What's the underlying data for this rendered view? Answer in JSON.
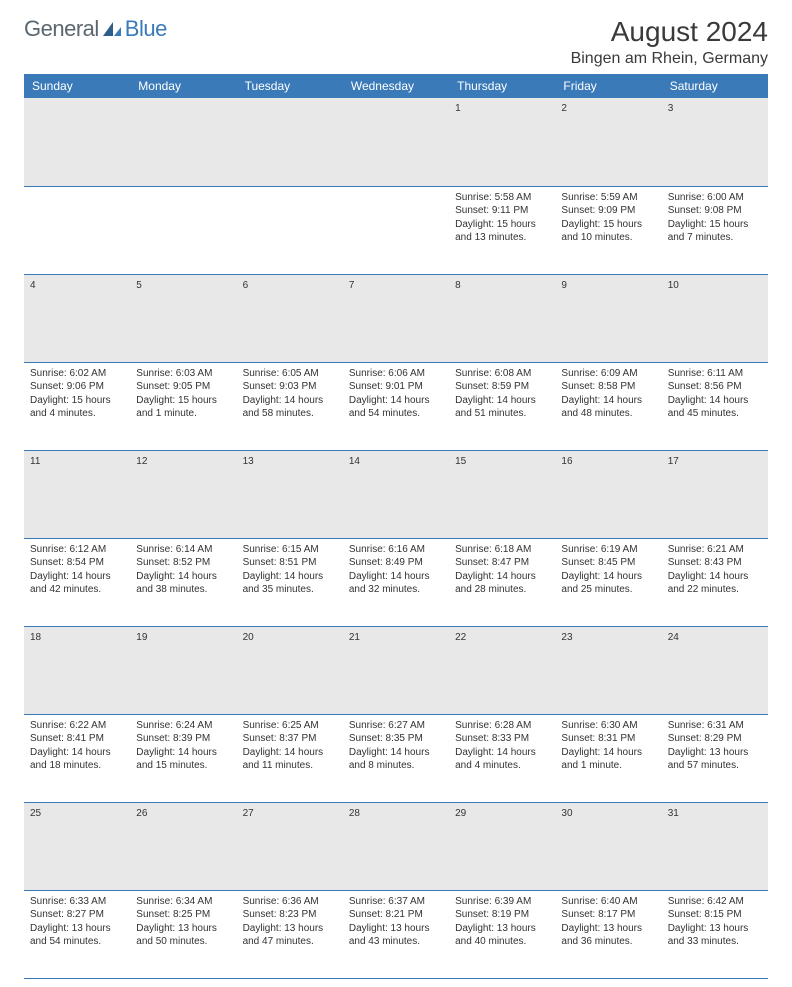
{
  "logo": {
    "text1": "General",
    "text2": "Blue"
  },
  "title": "August 2024",
  "location": "Bingen am Rhein, Germany",
  "colors": {
    "header_bg": "#3a7ab8",
    "daynum_bg": "#e8e8e8",
    "border": "#3a7ab8",
    "text": "#333333"
  },
  "weekdays": [
    "Sunday",
    "Monday",
    "Tuesday",
    "Wednesday",
    "Thursday",
    "Friday",
    "Saturday"
  ],
  "weeks": [
    {
      "nums": [
        "",
        "",
        "",
        "",
        "1",
        "2",
        "3"
      ],
      "cells": [
        null,
        null,
        null,
        null,
        {
          "sunrise": "Sunrise: 5:58 AM",
          "sunset": "Sunset: 9:11 PM",
          "daylight": "Daylight: 15 hours and 13 minutes."
        },
        {
          "sunrise": "Sunrise: 5:59 AM",
          "sunset": "Sunset: 9:09 PM",
          "daylight": "Daylight: 15 hours and 10 minutes."
        },
        {
          "sunrise": "Sunrise: 6:00 AM",
          "sunset": "Sunset: 9:08 PM",
          "daylight": "Daylight: 15 hours and 7 minutes."
        }
      ]
    },
    {
      "nums": [
        "4",
        "5",
        "6",
        "7",
        "8",
        "9",
        "10"
      ],
      "cells": [
        {
          "sunrise": "Sunrise: 6:02 AM",
          "sunset": "Sunset: 9:06 PM",
          "daylight": "Daylight: 15 hours and 4 minutes."
        },
        {
          "sunrise": "Sunrise: 6:03 AM",
          "sunset": "Sunset: 9:05 PM",
          "daylight": "Daylight: 15 hours and 1 minute."
        },
        {
          "sunrise": "Sunrise: 6:05 AM",
          "sunset": "Sunset: 9:03 PM",
          "daylight": "Daylight: 14 hours and 58 minutes."
        },
        {
          "sunrise": "Sunrise: 6:06 AM",
          "sunset": "Sunset: 9:01 PM",
          "daylight": "Daylight: 14 hours and 54 minutes."
        },
        {
          "sunrise": "Sunrise: 6:08 AM",
          "sunset": "Sunset: 8:59 PM",
          "daylight": "Daylight: 14 hours and 51 minutes."
        },
        {
          "sunrise": "Sunrise: 6:09 AM",
          "sunset": "Sunset: 8:58 PM",
          "daylight": "Daylight: 14 hours and 48 minutes."
        },
        {
          "sunrise": "Sunrise: 6:11 AM",
          "sunset": "Sunset: 8:56 PM",
          "daylight": "Daylight: 14 hours and 45 minutes."
        }
      ]
    },
    {
      "nums": [
        "11",
        "12",
        "13",
        "14",
        "15",
        "16",
        "17"
      ],
      "cells": [
        {
          "sunrise": "Sunrise: 6:12 AM",
          "sunset": "Sunset: 8:54 PM",
          "daylight": "Daylight: 14 hours and 42 minutes."
        },
        {
          "sunrise": "Sunrise: 6:14 AM",
          "sunset": "Sunset: 8:52 PM",
          "daylight": "Daylight: 14 hours and 38 minutes."
        },
        {
          "sunrise": "Sunrise: 6:15 AM",
          "sunset": "Sunset: 8:51 PM",
          "daylight": "Daylight: 14 hours and 35 minutes."
        },
        {
          "sunrise": "Sunrise: 6:16 AM",
          "sunset": "Sunset: 8:49 PM",
          "daylight": "Daylight: 14 hours and 32 minutes."
        },
        {
          "sunrise": "Sunrise: 6:18 AM",
          "sunset": "Sunset: 8:47 PM",
          "daylight": "Daylight: 14 hours and 28 minutes."
        },
        {
          "sunrise": "Sunrise: 6:19 AM",
          "sunset": "Sunset: 8:45 PM",
          "daylight": "Daylight: 14 hours and 25 minutes."
        },
        {
          "sunrise": "Sunrise: 6:21 AM",
          "sunset": "Sunset: 8:43 PM",
          "daylight": "Daylight: 14 hours and 22 minutes."
        }
      ]
    },
    {
      "nums": [
        "18",
        "19",
        "20",
        "21",
        "22",
        "23",
        "24"
      ],
      "cells": [
        {
          "sunrise": "Sunrise: 6:22 AM",
          "sunset": "Sunset: 8:41 PM",
          "daylight": "Daylight: 14 hours and 18 minutes."
        },
        {
          "sunrise": "Sunrise: 6:24 AM",
          "sunset": "Sunset: 8:39 PM",
          "daylight": "Daylight: 14 hours and 15 minutes."
        },
        {
          "sunrise": "Sunrise: 6:25 AM",
          "sunset": "Sunset: 8:37 PM",
          "daylight": "Daylight: 14 hours and 11 minutes."
        },
        {
          "sunrise": "Sunrise: 6:27 AM",
          "sunset": "Sunset: 8:35 PM",
          "daylight": "Daylight: 14 hours and 8 minutes."
        },
        {
          "sunrise": "Sunrise: 6:28 AM",
          "sunset": "Sunset: 8:33 PM",
          "daylight": "Daylight: 14 hours and 4 minutes."
        },
        {
          "sunrise": "Sunrise: 6:30 AM",
          "sunset": "Sunset: 8:31 PM",
          "daylight": "Daylight: 14 hours and 1 minute."
        },
        {
          "sunrise": "Sunrise: 6:31 AM",
          "sunset": "Sunset: 8:29 PM",
          "daylight": "Daylight: 13 hours and 57 minutes."
        }
      ]
    },
    {
      "nums": [
        "25",
        "26",
        "27",
        "28",
        "29",
        "30",
        "31"
      ],
      "cells": [
        {
          "sunrise": "Sunrise: 6:33 AM",
          "sunset": "Sunset: 8:27 PM",
          "daylight": "Daylight: 13 hours and 54 minutes."
        },
        {
          "sunrise": "Sunrise: 6:34 AM",
          "sunset": "Sunset: 8:25 PM",
          "daylight": "Daylight: 13 hours and 50 minutes."
        },
        {
          "sunrise": "Sunrise: 6:36 AM",
          "sunset": "Sunset: 8:23 PM",
          "daylight": "Daylight: 13 hours and 47 minutes."
        },
        {
          "sunrise": "Sunrise: 6:37 AM",
          "sunset": "Sunset: 8:21 PM",
          "daylight": "Daylight: 13 hours and 43 minutes."
        },
        {
          "sunrise": "Sunrise: 6:39 AM",
          "sunset": "Sunset: 8:19 PM",
          "daylight": "Daylight: 13 hours and 40 minutes."
        },
        {
          "sunrise": "Sunrise: 6:40 AM",
          "sunset": "Sunset: 8:17 PM",
          "daylight": "Daylight: 13 hours and 36 minutes."
        },
        {
          "sunrise": "Sunrise: 6:42 AM",
          "sunset": "Sunset: 8:15 PM",
          "daylight": "Daylight: 13 hours and 33 minutes."
        }
      ]
    }
  ]
}
